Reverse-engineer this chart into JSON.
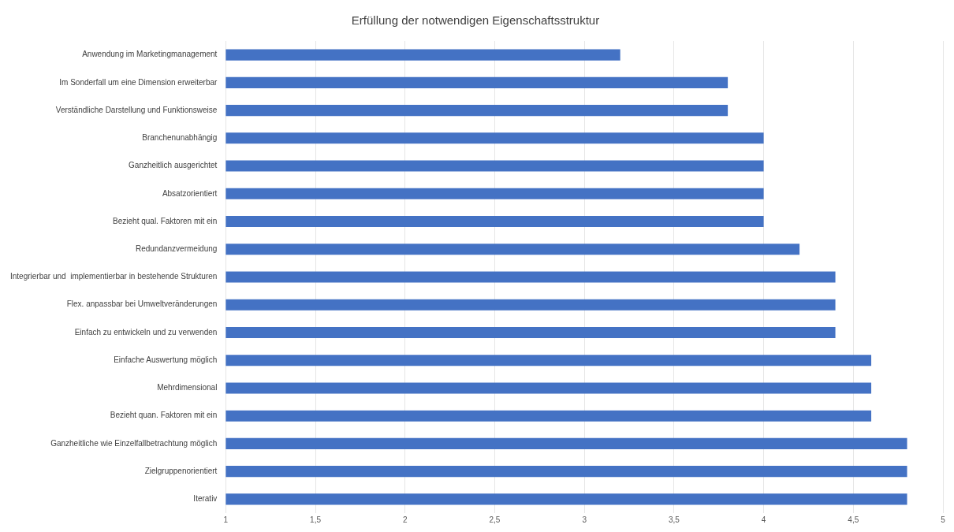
{
  "chart_data": {
    "type": "bar",
    "orientation": "horizontal",
    "title": "Erfüllung der notwendigen Eigenschaftsstruktur",
    "categories": [
      "Anwendung im Marketingmanagement",
      "Im Sonderfall um eine Dimension erweiterbar",
      "Verständliche Darstellung und Funktionsweise",
      "Branchenunabhängig",
      "Ganzheitlich ausgerichtet",
      "Absatzorientiert",
      "Bezieht qual. Faktoren mit ein",
      "Redundanzvermeidung",
      "Integrierbar und  implementierbar in bestehende Strukturen",
      "Flex. anpassbar bei Umweltveränderungen",
      "Einfach zu entwickeln und zu verwenden",
      "Einfache Auswertung möglich",
      "Mehrdimensional",
      "Bezieht quan. Faktoren mit ein",
      "Ganzheitliche wie Einzelfallbetrachtung möglich",
      "Zielgruppenorientiert",
      "Iterativ"
    ],
    "values": [
      3.2,
      3.8,
      3.8,
      4.0,
      4.0,
      4.0,
      4.0,
      4.2,
      4.4,
      4.4,
      4.4,
      4.6,
      4.6,
      4.6,
      4.8,
      4.8,
      4.8
    ],
    "color": "#4472c4",
    "xlim": [
      1,
      5
    ],
    "xticks": [
      1,
      {
        "value": 1.5,
        "label": "1,5"
      },
      2,
      {
        "value": 2.5,
        "label": "2,5"
      },
      3,
      {
        "value": 3.5,
        "label": "3,5"
      },
      4,
      {
        "value": 4.5,
        "label": "4,5"
      },
      5
    ],
    "grid": "x",
    "legend": false
  }
}
